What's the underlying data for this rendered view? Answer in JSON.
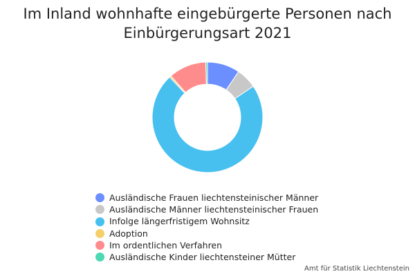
{
  "chart_data": {
    "type": "pie",
    "title_lines": [
      "Im Inland wohnhafte eingebürgerte Personen nach",
      "Einbürgerungsart 2021"
    ],
    "categories": [
      "Ausländische Frauen liechtensteinischer Männer",
      "Ausländische Männer liechtensteinischer Frauen",
      "Infolge längerfristigem Wohnsitz",
      "Adoption",
      "Im ordentlichen Verfahren",
      "Ausländische Kinder liechtensteiner Mütter"
    ],
    "values": [
      9.5,
      6.0,
      72.5,
      0.5,
      11.0,
      0.5
    ],
    "colors": [
      "#6b8fff",
      "#c8c8c8",
      "#47c0f0",
      "#f5d06a",
      "#ff8c8c",
      "#4ed8b3"
    ],
    "donut": true,
    "legend_position": "bottom"
  },
  "source": "Amt für Statistik Liechtenstein"
}
